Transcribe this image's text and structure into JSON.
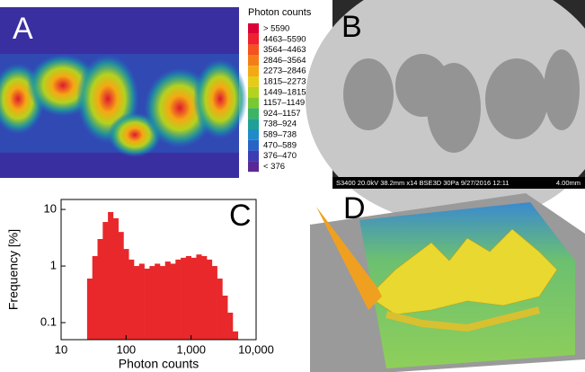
{
  "panel_labels": [
    "A",
    "B",
    "C",
    "D"
  ],
  "legend_a": {
    "title": "Photon counts",
    "items": [
      {
        "label": "> 5590",
        "color": "#dc0038"
      },
      {
        "label": "4463–5590",
        "color": "#ef2030"
      },
      {
        "label": "3564–4463",
        "color": "#f4521e"
      },
      {
        "label": "2846–3564",
        "color": "#f57d19"
      },
      {
        "label": "2273–2846",
        "color": "#f5a814"
      },
      {
        "label": "1815–2273",
        "color": "#e6cb18"
      },
      {
        "label": "1449–1815",
        "color": "#b4d21e"
      },
      {
        "label": "1157–1149",
        "color": "#78c832"
      },
      {
        "label": "924–1157",
        "color": "#3cb464"
      },
      {
        "label": "738–924",
        "color": "#1ea096"
      },
      {
        "label": "589–738",
        "color": "#1e8cc8"
      },
      {
        "label": "470–589",
        "color": "#2864c8"
      },
      {
        "label": "376–470",
        "color": "#3c3cb4"
      },
      {
        "label": "< 376",
        "color": "#5a2896"
      }
    ]
  },
  "panel_b": {
    "info": "S3400 20.0kV 38.2mm x14 BSE3D 30Pa 9/27/2016 12:11",
    "scale": "4.00mm"
  },
  "chart_data": {
    "type": "histogram",
    "xlabel": "Photon counts",
    "ylabel": "Frequency [%]",
    "xscale": "log",
    "yscale": "log",
    "color": "#e8282a",
    "bins": [
      25.1,
      30.2,
      36.3,
      43.7,
      52.5,
      63.1,
      75.9,
      91.2,
      109.6,
      131.8,
      158.5,
      190.5,
      229.1,
      275.4,
      331.1,
      398.1,
      478.6,
      575.4,
      691.8,
      831.8,
      1000,
      1202,
      1445,
      1738,
      2089,
      2512,
      3020,
      3631,
      4365,
      5248
    ],
    "values": [
      0.6,
      1.5,
      3,
      6,
      9,
      7,
      4,
      2,
      1.3,
      1.0,
      1.1,
      0.9,
      1.0,
      1.1,
      1.0,
      1.2,
      1.1,
      1.3,
      1.4,
      1.5,
      1.4,
      1.6,
      1.5,
      1.3,
      1.0,
      0.6,
      0.3,
      0.15,
      0.07
    ],
    "xlim": [
      10,
      10000
    ],
    "ylim": [
      0.05,
      15
    ],
    "xticks": [
      10,
      100,
      {
        "value": 1000,
        "label": "1,000"
      },
      {
        "value": 10000,
        "label": "10,000"
      }
    ],
    "yticks": [
      0.1,
      1,
      10
    ]
  }
}
